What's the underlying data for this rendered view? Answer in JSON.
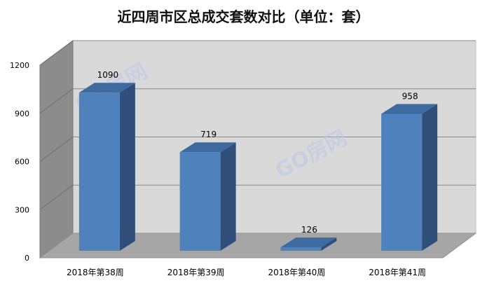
{
  "chart_data": {
    "type": "bar",
    "title": "近四周市区总成交套数对比（单位：套）",
    "categories": [
      "2018年第38周",
      "2018年第39周",
      "2018年第40周",
      "2018年第41周"
    ],
    "values": [
      1090,
      719,
      126,
      958
    ],
    "ylim": [
      0,
      1200
    ],
    "y_ticks": [
      0,
      300,
      600,
      900,
      1200
    ],
    "grid": true,
    "legend": "none",
    "style": "3d-column"
  },
  "colors": {
    "bar_front": "#4f81bd",
    "bar_top": "#3e6aa0",
    "bar_side": "#2f4f7a",
    "wall_back": "#d9d9d9",
    "wall_left": "#8c8c8c",
    "floor": "#a6a6a6"
  },
  "watermark": {
    "text": "GO房网"
  }
}
